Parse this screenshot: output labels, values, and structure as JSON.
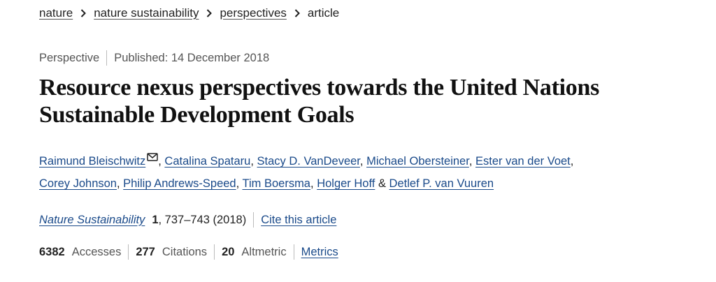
{
  "breadcrumb": {
    "items": [
      {
        "label": "nature"
      },
      {
        "label": "nature sustainability"
      },
      {
        "label": "perspectives"
      }
    ],
    "current": "article",
    "separator_icon": "chevron-right-icon"
  },
  "meta": {
    "type": "Perspective",
    "published": "Published: 14 December 2018"
  },
  "article": {
    "title": "Resource nexus perspectives towards the United Nations Sustainable Development Goals"
  },
  "authors": {
    "list": [
      "Raimund Bleischwitz",
      "Catalina Spataru",
      "Stacy D. VanDeveer",
      "Michael Obersteiner",
      "Ester van der Voet",
      "Corey Johnson",
      "Philip Andrews-Speed",
      "Tim Boersma",
      "Holger Hoff",
      "Detlef P. van Vuuren"
    ],
    "comma": ",",
    "ampersand": "&",
    "corresponding_icon": "mail-icon"
  },
  "citation": {
    "journal": "Nature Sustainability",
    "volume": "1",
    "pages_year": ", 737–743 (2018)",
    "cite_link": "Cite this article"
  },
  "metrics": {
    "accesses_count": "6382",
    "accesses_label": "Accesses",
    "citations_count": "277",
    "citations_label": "Citations",
    "altmetric_count": "20",
    "altmetric_label": "Altmetric",
    "metrics_link": "Metrics"
  },
  "colors": {
    "link": "#1a4a8a",
    "text": "#222222",
    "muted": "#555555"
  }
}
